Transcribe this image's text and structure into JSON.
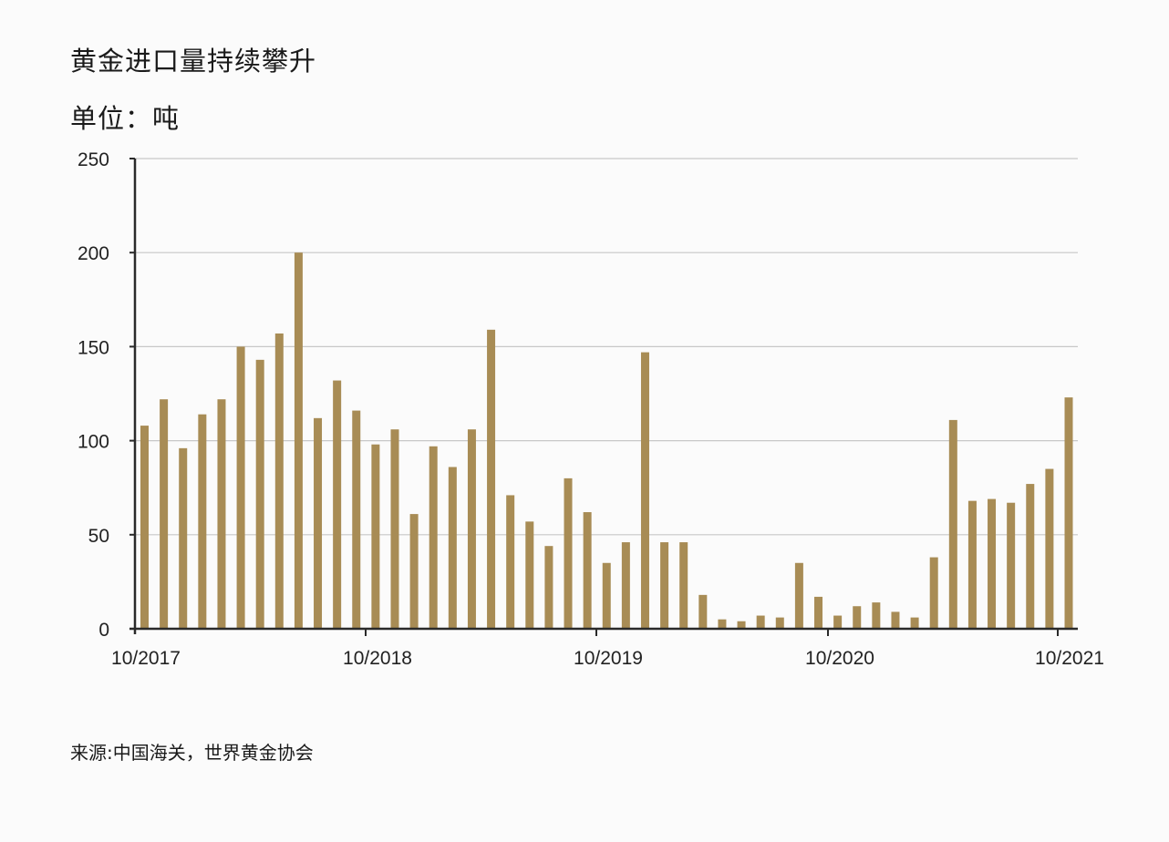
{
  "title": "黄金进口量持续攀升",
  "unit_label": "单位：吨",
  "source": "来源:中国海关，世界黄金协会",
  "colors": {
    "bar": "#a88c55",
    "grid": "#c8c8c8",
    "axis": "#2a2a2a",
    "background": "#fbfbfb"
  },
  "chart_data": {
    "type": "bar",
    "title": "黄金进口量持续攀升",
    "ylabel": "单位：吨",
    "xlabel": "",
    "ylim": [
      0,
      250
    ],
    "yticks": [
      0,
      50,
      100,
      150,
      200,
      250
    ],
    "xtick_labels": [
      "10/2017",
      "10/2018",
      "10/2019",
      "10/2020",
      "10/2021"
    ],
    "grid": true,
    "legend": null,
    "categories": [
      "10/2017",
      "11/2017",
      "12/2017",
      "01/2018",
      "02/2018",
      "03/2018",
      "04/2018",
      "05/2018",
      "06/2018",
      "07/2018",
      "08/2018",
      "09/2018",
      "10/2018",
      "11/2018",
      "12/2018",
      "01/2019",
      "02/2019",
      "03/2019",
      "04/2019",
      "05/2019",
      "06/2019",
      "07/2019",
      "08/2019",
      "09/2019",
      "10/2019",
      "11/2019",
      "12/2019",
      "01/2020",
      "02/2020",
      "03/2020",
      "04/2020",
      "05/2020",
      "06/2020",
      "07/2020",
      "08/2020",
      "09/2020",
      "10/2020",
      "11/2020",
      "12/2020",
      "01/2021",
      "02/2021",
      "03/2021",
      "04/2021",
      "05/2021",
      "06/2021",
      "07/2021",
      "08/2021",
      "09/2021",
      "10/2021"
    ],
    "values": [
      108,
      122,
      96,
      114,
      122,
      150,
      143,
      157,
      200,
      112,
      132,
      116,
      98,
      106,
      61,
      97,
      86,
      106,
      159,
      71,
      57,
      44,
      80,
      62,
      35,
      46,
      147,
      46,
      46,
      18,
      5,
      4,
      7,
      6,
      35,
      17,
      7,
      12,
      14,
      9,
      6,
      38,
      111,
      68,
      69,
      67,
      77,
      85,
      123
    ]
  }
}
